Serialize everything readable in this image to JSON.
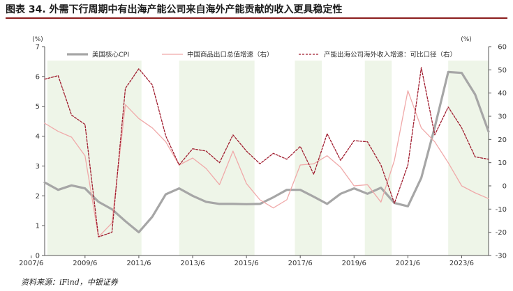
{
  "title": "图表 34. 外需下行周期中有出海产能公司来自海外产能贡献的收入更具稳定性",
  "source": "资料来源：iFind，中银证券",
  "colors": {
    "cpi": "#a6a6a6",
    "exports": "#f0a9a9",
    "overseas": "#a01c2e",
    "band": "#eef5e8",
    "rule": "#8b1c1c"
  },
  "chart_data": {
    "type": "line",
    "left_unit": "(%)",
    "right_unit": "(%)",
    "left_ylim": [
      0,
      7
    ],
    "right_ylim": [
      -30,
      60
    ],
    "left_ticks": [
      "0",
      "1",
      "2",
      "3",
      "4",
      "5",
      "6",
      "7"
    ],
    "right_ticks": [
      "-30",
      "-20",
      "-10",
      "0",
      "10",
      "20",
      "30",
      "40",
      "50",
      "60"
    ],
    "x_range": [
      2007.5,
      2024.0
    ],
    "x_ticks": [
      "2007/6",
      "2009/6",
      "2011/6",
      "2013/6",
      "2015/6",
      "2017/6",
      "2019/6",
      "2021/6",
      "2023/6"
    ],
    "shaded_periods": [
      [
        2007.6,
        2011.1
      ],
      [
        2012.5,
        2015.3
      ],
      [
        2016.8,
        2017.8
      ],
      [
        2019.4,
        2020.4
      ],
      [
        2022.5,
        2024.0
      ]
    ],
    "legend_position": "top",
    "series": [
      {
        "name": "美国核心CPI",
        "axis": "left",
        "style": "solid-thick",
        "x": [
          2007.5,
          2008.0,
          2008.5,
          2009.0,
          2009.5,
          2010.0,
          2010.5,
          2011.0,
          2011.5,
          2012.0,
          2012.5,
          2013.0,
          2013.5,
          2014.0,
          2014.5,
          2015.0,
          2015.5,
          2016.0,
          2016.5,
          2017.0,
          2017.5,
          2018.0,
          2018.5,
          2019.0,
          2019.5,
          2020.0,
          2020.5,
          2021.0,
          2021.5,
          2022.0,
          2022.5,
          2023.0,
          2023.5,
          2024.0
        ],
        "values": [
          2.45,
          2.2,
          2.35,
          2.25,
          1.8,
          1.55,
          1.15,
          0.78,
          1.3,
          2.05,
          2.25,
          2.0,
          1.8,
          1.73,
          1.73,
          1.72,
          1.73,
          1.95,
          2.2,
          2.2,
          1.97,
          1.73,
          2.07,
          2.25,
          2.07,
          2.27,
          1.76,
          1.65,
          2.6,
          4.3,
          6.15,
          6.12,
          5.4,
          4.15
        ]
      },
      {
        "name": "中国商品出口总值增速（右）",
        "axis": "right",
        "style": "solid-thin",
        "x": [
          2007.5,
          2008.0,
          2008.5,
          2009.0,
          2009.5,
          2010.0,
          2010.5,
          2011.0,
          2011.5,
          2012.0,
          2012.5,
          2013.0,
          2013.5,
          2014.0,
          2014.5,
          2015.0,
          2015.5,
          2016.0,
          2016.5,
          2017.0,
          2017.5,
          2018.0,
          2018.5,
          2019.0,
          2019.5,
          2020.0,
          2020.5,
          2021.0,
          2021.5,
          2022.0,
          2022.5,
          2023.0,
          2023.5,
          2024.0
        ],
        "values": [
          27,
          23.5,
          21,
          13,
          -22,
          -16,
          35,
          29,
          25,
          19,
          9,
          12,
          7.5,
          0.5,
          15,
          1,
          -6,
          -9.5,
          -6,
          9,
          9.5,
          13,
          8,
          0,
          0.5,
          -7,
          11,
          41,
          25,
          19,
          10,
          0,
          -3,
          -5.5
        ]
      },
      {
        "name": "产能出海公司海外收入增速：可比口径（右）",
        "axis": "right",
        "style": "dashed",
        "x": [
          2007.5,
          2008.0,
          2008.5,
          2009.0,
          2009.5,
          2010.0,
          2010.5,
          2011.0,
          2011.5,
          2012.0,
          2012.5,
          2013.0,
          2013.5,
          2014.0,
          2014.5,
          2015.0,
          2015.5,
          2016.0,
          2016.5,
          2017.0,
          2017.5,
          2018.0,
          2018.5,
          2019.0,
          2019.5,
          2020.0,
          2020.5,
          2021.0,
          2021.5,
          2022.0,
          2022.5,
          2023.0,
          2023.5,
          2024.0
        ],
        "values": [
          46,
          47.5,
          30.5,
          26.5,
          -22,
          -20,
          42,
          50.5,
          43.5,
          21.5,
          9,
          16,
          15,
          10,
          22,
          15,
          9.5,
          14,
          11.5,
          17,
          5,
          22.5,
          11,
          19.5,
          19,
          9,
          -7.5,
          9,
          51,
          22,
          34,
          25,
          12.5,
          11.5
        ]
      }
    ]
  }
}
